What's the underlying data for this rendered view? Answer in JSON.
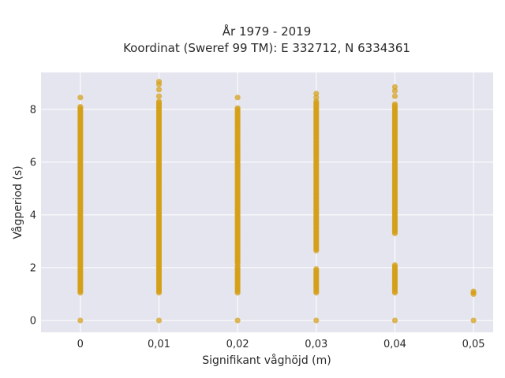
{
  "chart_data": {
    "type": "scatter",
    "title": "År 1979 - 2019",
    "subtitle": "Koordinat (Sweref 99 TM): E 332712, N 6334361",
    "xlabel": "Signifikant våghöjd (m)",
    "ylabel": "Vågperiod (s)",
    "xlim": [
      -0.005,
      0.0525
    ],
    "ylim": [
      -0.45,
      9.4
    ],
    "xticks": [
      0,
      0.01,
      0.02,
      0.03,
      0.04,
      0.05
    ],
    "xtick_labels": [
      "0",
      "0,01",
      "0,02",
      "0,03",
      "0,04",
      "0,05"
    ],
    "yticks": [
      0,
      2,
      4,
      6,
      8
    ],
    "ytick_labels": [
      "0",
      "2",
      "4",
      "6",
      "8"
    ],
    "grid": true,
    "marker_color": "#D4A017",
    "plot_background": "#E5E5EF",
    "series": [
      {
        "x_values": [
          0,
          0.01,
          0.02,
          0.03,
          0.04,
          0.05
        ],
        "point_groups": [
          {
            "x": 0,
            "dense_ranges": [
              [
                1.05,
                8.1
              ]
            ],
            "points": [
              0,
              8.45
            ]
          },
          {
            "x": 0.01,
            "dense_ranges": [
              [
                1.05,
                8.3
              ]
            ],
            "points": [
              0,
              8.5,
              8.75,
              8.95,
              9.05
            ]
          },
          {
            "x": 0.02,
            "dense_ranges": [
              [
                1.05,
                2.05
              ],
              [
                2.15,
                8.05
              ]
            ],
            "points": [
              0,
              8.45
            ]
          },
          {
            "x": 0.03,
            "dense_ranges": [
              [
                1.05,
                1.95
              ],
              [
                2.65,
                8.3
              ]
            ],
            "points": [
              0,
              8.45,
              8.6
            ]
          },
          {
            "x": 0.04,
            "dense_ranges": [
              [
                1.05,
                2.1
              ],
              [
                3.3,
                8.2
              ]
            ],
            "points": [
              0,
              8.5,
              8.7,
              8.85
            ]
          },
          {
            "x": 0.05,
            "dense_ranges": [
              [
                1.0,
                1.1
              ]
            ],
            "points": [
              0
            ]
          }
        ]
      }
    ]
  }
}
